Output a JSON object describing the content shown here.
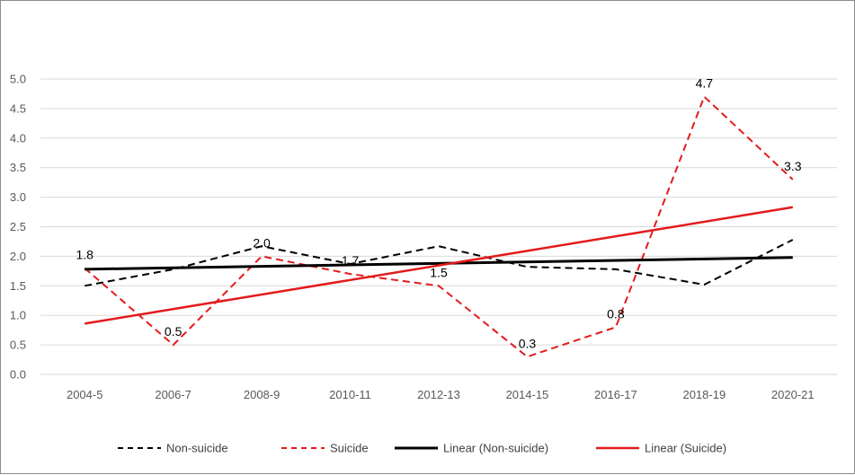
{
  "chart_data": {
    "type": "line",
    "categories": [
      "2004-5",
      "2006-7",
      "2008-9",
      "2010-11",
      "2012-13",
      "2014-15",
      "2016-17",
      "2018-19",
      "2020-21"
    ],
    "ylim": [
      0,
      5
    ],
    "yticks": [
      "0.0",
      "0.5",
      "1.0",
      "1.5",
      "2.0",
      "2.5",
      "3.0",
      "3.5",
      "4.0",
      "4.5",
      "5.0"
    ],
    "grid": true,
    "legend_position": "bottom",
    "series": [
      {
        "name": "Non-suicide",
        "values": [
          1.5,
          1.78,
          2.17,
          1.87,
          2.17,
          1.82,
          1.78,
          1.52,
          2.28
        ],
        "color": "#000000",
        "style": "dashed"
      },
      {
        "name": "Suicide",
        "values": [
          1.8,
          0.5,
          2.0,
          1.7,
          1.5,
          0.3,
          0.8,
          4.7,
          3.3
        ],
        "data_labels": [
          "1.8",
          "0.5",
          "2.0",
          "1.7",
          "1.5",
          "0.3",
          "0.8",
          "4.7",
          "3.3"
        ],
        "color": "#e31a1c",
        "style": "dashed"
      }
    ],
    "trendlines": [
      {
        "name": "Linear (Non-suicide)",
        "start": 1.78,
        "end": 1.98,
        "color": "#000000",
        "style": "solid"
      },
      {
        "name": "Linear (Suicide)",
        "start": 0.86,
        "end": 2.83,
        "color": "#e31a1c",
        "style": "solid"
      }
    ],
    "legend": [
      "Non-suicide",
      "Suicide",
      "Linear (Non-suicide)",
      "Linear (Suicide)"
    ]
  }
}
